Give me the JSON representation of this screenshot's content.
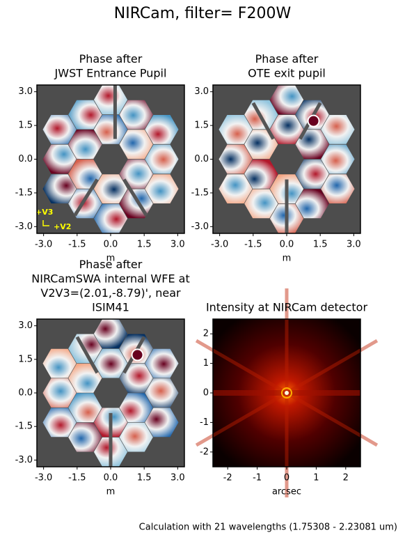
{
  "title": "NIRCam, filter= F200W",
  "footnote": "Calculation with 21 wavelengths (1.75308 - 2.23081 um)",
  "chart_data": [
    {
      "type": "image",
      "colormap": "RdBu",
      "title": [
        "Phase after",
        "JWST Entrance Pupil"
      ],
      "xlabel": "m",
      "xlim": [
        -3.3,
        3.3
      ],
      "ylim": [
        -3.3,
        3.3
      ],
      "xticks": [
        {
          "value": -3,
          "label": "-3.0"
        },
        -1.5,
        {
          "value": 0,
          "label": "0.0"
        },
        1.5,
        {
          "value": 3,
          "label": "3.0"
        }
      ],
      "yticks": [
        {
          "value": -3,
          "label": "-3.0"
        },
        -1.5,
        {
          "value": 0,
          "label": "0.0"
        },
        1.5,
        {
          "value": 3,
          "label": "3.0"
        }
      ],
      "annotations": [
        "+V3",
        "+V2"
      ],
      "annotation_color": "#ffff00"
    },
    {
      "type": "image",
      "colormap": "RdBu",
      "title": [
        "Phase after",
        "OTE exit pupil"
      ],
      "xlabel": "m",
      "xlim": [
        -3.3,
        3.3
      ],
      "ylim": [
        -3.3,
        3.3
      ],
      "xticks": [
        {
          "value": -3,
          "label": "-3.0"
        },
        -1.5,
        {
          "value": 0,
          "label": "0.0"
        },
        1.5,
        {
          "value": 3,
          "label": "3.0"
        }
      ],
      "yticks": [
        {
          "value": -3,
          "label": "-3.0"
        },
        -1.5,
        {
          "value": 0,
          "label": "0.0"
        },
        1.5,
        {
          "value": 3,
          "label": "3.0"
        }
      ]
    },
    {
      "type": "image",
      "colormap": "RdBu",
      "title": [
        "Phase after",
        "NIRCamSWA internal WFE at",
        "V2V3=(2.01,-8.79)', near",
        "ISIM41"
      ],
      "xlabel": "m",
      "xlim": [
        -3.3,
        3.3
      ],
      "ylim": [
        -3.3,
        3.3
      ],
      "xticks": [
        {
          "value": -3,
          "label": "-3.0"
        },
        -1.5,
        {
          "value": 0,
          "label": "0.0"
        },
        1.5,
        {
          "value": 3,
          "label": "3.0"
        }
      ],
      "yticks": [
        {
          "value": -3,
          "label": "-3.0"
        },
        -1.5,
        {
          "value": 0,
          "label": "0.0"
        },
        1.5,
        {
          "value": 3,
          "label": "3.0"
        }
      ]
    },
    {
      "type": "image",
      "colormap": "hot",
      "title": [
        "Intensity at NIRCam detector"
      ],
      "xlabel": "arcsec",
      "xlim": [
        -2.5,
        2.5
      ],
      "ylim": [
        -2.5,
        2.5
      ],
      "xticks": [
        -2,
        -1,
        0,
        1,
        2
      ],
      "yticks": [
        -2,
        -1,
        0,
        1,
        2
      ]
    }
  ]
}
